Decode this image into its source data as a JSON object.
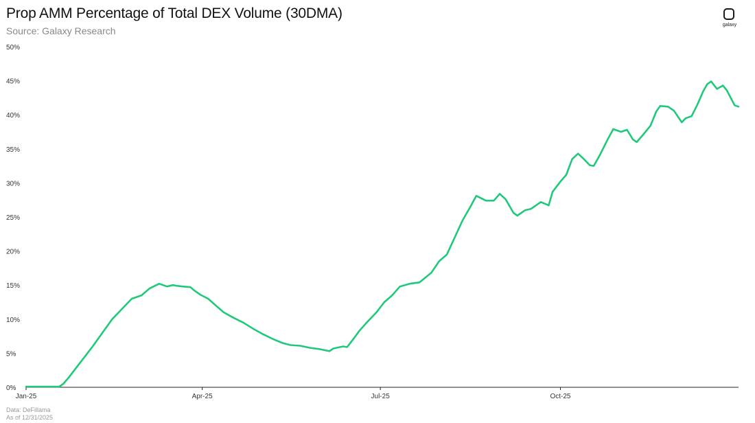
{
  "header": {
    "title": "Prop AMM Percentage of Total DEX Volume (30DMA)",
    "subtitle": "Source: Galaxy Research"
  },
  "logo": {
    "text": "galaxy"
  },
  "footer": {
    "data_source": "Data: DeFillama",
    "as_of": "As of 12/31/2025"
  },
  "colors": {
    "line": "#1fc97b",
    "axis": "#222222",
    "tick_text": "#333333"
  },
  "chart_data": {
    "type": "line",
    "title": "Prop AMM Percentage of Total DEX Volume (30DMA)",
    "xlabel": "",
    "ylabel": "",
    "x_range": [
      "2025-01-01",
      "2025-12-31"
    ],
    "ylim": [
      0,
      50
    ],
    "y_ticks": [
      0,
      5,
      10,
      15,
      20,
      25,
      30,
      35,
      40,
      45,
      50
    ],
    "y_tick_labels": [
      "0%",
      "5%",
      "10%",
      "15%",
      "20%",
      "25%",
      "30%",
      "35%",
      "40%",
      "45%",
      "50%"
    ],
    "x_ticks": [
      "2025-01-01",
      "2025-04-01",
      "2025-07-01",
      "2025-10-01"
    ],
    "x_tick_labels": [
      "Jan-25",
      "Apr-25",
      "Jul-25",
      "Oct-25"
    ],
    "grid": false,
    "legend": "none",
    "series": [
      {
        "x": [
          "2025-01-01",
          "2025-01-10",
          "2025-01-18",
          "2025-01-20",
          "2025-01-23",
          "2025-01-27",
          "2025-01-31",
          "2025-02-04",
          "2025-02-09",
          "2025-02-14",
          "2025-02-19",
          "2025-02-24",
          "2025-03-01",
          "2025-03-05",
          "2025-03-10",
          "2025-03-14",
          "2025-03-17",
          "2025-03-19",
          "2025-03-22",
          "2025-03-26",
          "2025-03-28",
          "2025-03-31",
          "2025-04-04",
          "2025-04-08",
          "2025-04-12",
          "2025-04-17",
          "2025-04-22",
          "2025-04-27",
          "2025-05-02",
          "2025-05-07",
          "2025-05-12",
          "2025-05-16",
          "2025-05-21",
          "2025-05-26",
          "2025-05-31",
          "2025-06-05",
          "2025-06-07",
          "2025-06-12",
          "2025-06-14",
          "2025-06-17",
          "2025-06-20",
          "2025-06-24",
          "2025-06-29",
          "2025-07-03",
          "2025-07-07",
          "2025-07-11",
          "2025-07-16",
          "2025-07-21",
          "2025-07-27",
          "2025-07-31",
          "2025-08-04",
          "2025-08-08",
          "2025-08-12",
          "2025-08-16",
          "2025-08-19",
          "2025-08-24",
          "2025-08-28",
          "2025-08-31",
          "2025-09-03",
          "2025-09-07",
          "2025-09-09",
          "2025-09-11",
          "2025-09-13",
          "2025-09-16",
          "2025-09-21",
          "2025-09-25",
          "2025-09-27",
          "2025-10-01",
          "2025-10-04",
          "2025-10-07",
          "2025-10-10",
          "2025-10-13",
          "2025-10-16",
          "2025-10-18",
          "2025-10-21",
          "2025-10-25",
          "2025-10-28",
          "2025-11-01",
          "2025-11-04",
          "2025-11-07",
          "2025-11-09",
          "2025-11-12",
          "2025-11-16",
          "2025-11-19",
          "2025-11-21",
          "2025-11-25",
          "2025-11-28",
          "2025-12-02",
          "2025-12-04",
          "2025-12-07",
          "2025-12-10",
          "2025-12-13",
          "2025-12-15",
          "2025-12-17",
          "2025-12-20",
          "2025-12-23",
          "2025-12-25",
          "2025-12-27",
          "2025-12-29",
          "2025-12-31"
        ],
        "y": [
          0.1,
          0.1,
          0.1,
          0.5,
          1.5,
          3.0,
          4.5,
          6.0,
          8.0,
          10.0,
          11.5,
          13.0,
          13.5,
          14.5,
          15.2,
          14.8,
          15.0,
          14.9,
          14.8,
          14.7,
          14.2,
          13.6,
          13.0,
          12.0,
          11.0,
          10.2,
          9.5,
          8.6,
          7.8,
          7.1,
          6.5,
          6.2,
          6.1,
          5.8,
          5.6,
          5.3,
          5.7,
          6.0,
          5.9,
          7.0,
          8.2,
          9.5,
          11.0,
          12.5,
          13.5,
          14.8,
          15.2,
          15.4,
          16.8,
          18.5,
          19.5,
          22.0,
          24.5,
          26.5,
          28.1,
          27.4,
          27.4,
          28.4,
          27.6,
          25.6,
          25.2,
          25.6,
          26.0,
          26.2,
          27.2,
          26.7,
          28.7,
          30.2,
          31.2,
          33.5,
          34.3,
          33.5,
          32.6,
          32.5,
          34.0,
          36.3,
          37.9,
          37.5,
          37.8,
          36.4,
          36.0,
          37.0,
          38.4,
          40.5,
          41.3,
          41.2,
          40.6,
          38.9,
          39.5,
          39.8,
          41.5,
          43.5,
          44.5,
          44.9,
          43.8,
          44.3,
          43.6,
          42.5,
          41.4,
          41.2
        ]
      }
    ]
  }
}
